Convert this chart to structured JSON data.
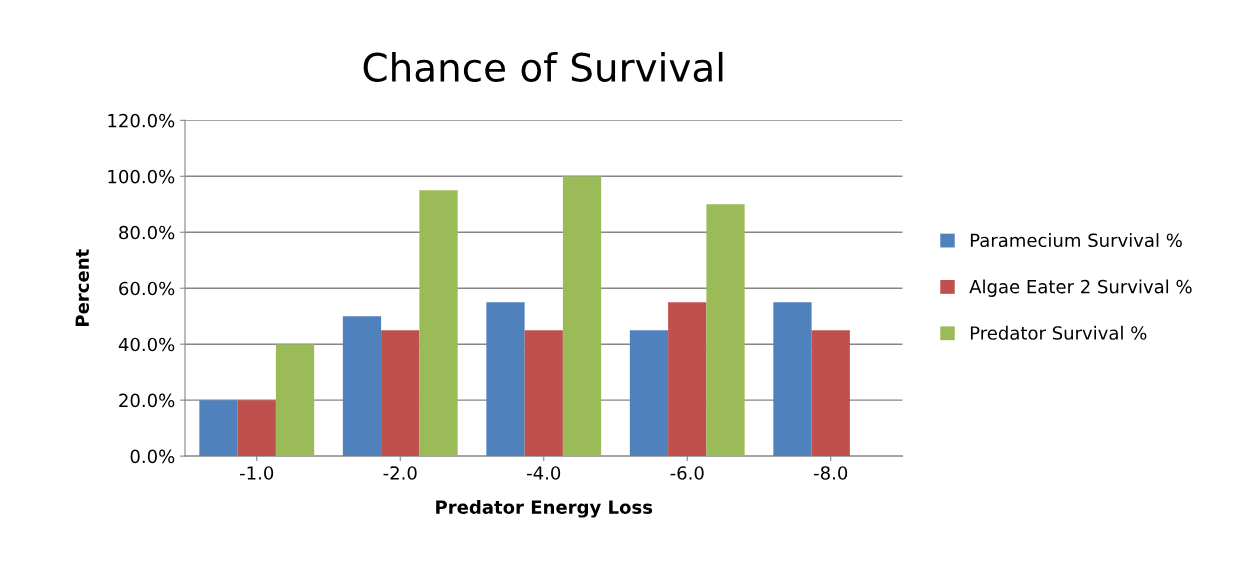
{
  "chart_data": {
    "type": "bar",
    "title": "Chance of Survival",
    "xlabel": "Predator Energy Loss",
    "ylabel": "Percent",
    "categories": [
      "-1.0",
      "-2.0",
      "-4.0",
      "-6.0",
      "-8.0"
    ],
    "series": [
      {
        "name": "Paramecium Survival %",
        "color": "#4f81bd",
        "values": [
          20,
          50,
          55,
          45,
          55
        ]
      },
      {
        "name": "Algae Eater 2 Survival %",
        "color": "#c0504d",
        "values": [
          20,
          45,
          45,
          55,
          45
        ]
      },
      {
        "name": "Predator Survival %",
        "color": "#9bbb59",
        "values": [
          40,
          95,
          100,
          90,
          0
        ]
      }
    ],
    "ylim": [
      0,
      120
    ],
    "yticks": [
      {
        "value": 0,
        "label": "0.0%"
      },
      {
        "value": 20,
        "label": "20.0%"
      },
      {
        "value": 40,
        "label": "40.0%"
      },
      {
        "value": 60,
        "label": "60.0%"
      },
      {
        "value": 80,
        "label": "80.0%"
      },
      {
        "value": 100,
        "label": "100.0%"
      },
      {
        "value": 120,
        "label": "120.0%"
      }
    ],
    "grid": "y",
    "legend": "right"
  }
}
